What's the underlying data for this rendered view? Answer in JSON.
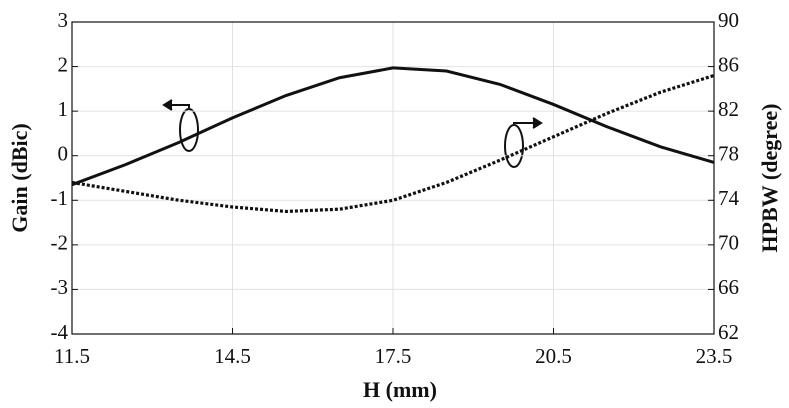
{
  "chart_data": {
    "type": "line",
    "xlabel": "H (mm)",
    "ylabel": "Gain (dBic)",
    "y2label": "HPBW (degree)",
    "x": [
      11.5,
      12.5,
      13.5,
      14.5,
      15.5,
      16.5,
      17.5,
      18.5,
      19.5,
      20.5,
      21.5,
      22.5,
      23.5
    ],
    "series": [
      {
        "name": "Gain",
        "color": "#111111",
        "dash": false,
        "axis": "y",
        "values": [
          -0.65,
          -0.2,
          0.3,
          0.85,
          1.35,
          1.75,
          1.97,
          1.9,
          1.6,
          1.15,
          0.65,
          0.2,
          -0.15
        ]
      },
      {
        "name": "HPBW",
        "color": "#111111",
        "dash": true,
        "axis": "y2",
        "values": [
          75.6,
          74.8,
          74.0,
          73.4,
          73.0,
          73.2,
          74.0,
          75.6,
          77.6,
          79.7,
          81.8,
          83.7,
          85.2
        ]
      }
    ],
    "xlim": [
      11.5,
      23.5
    ],
    "xticks": [
      11.5,
      14.5,
      17.5,
      20.5,
      23.5
    ],
    "ylim": [
      -4,
      3
    ],
    "yticks": [
      -4,
      -3,
      -2,
      -1,
      0,
      1,
      2,
      3
    ],
    "y2lim": [
      62,
      90
    ],
    "y2ticks": [
      62,
      66,
      70,
      74,
      78,
      82,
      86,
      90
    ],
    "grid": true
  }
}
